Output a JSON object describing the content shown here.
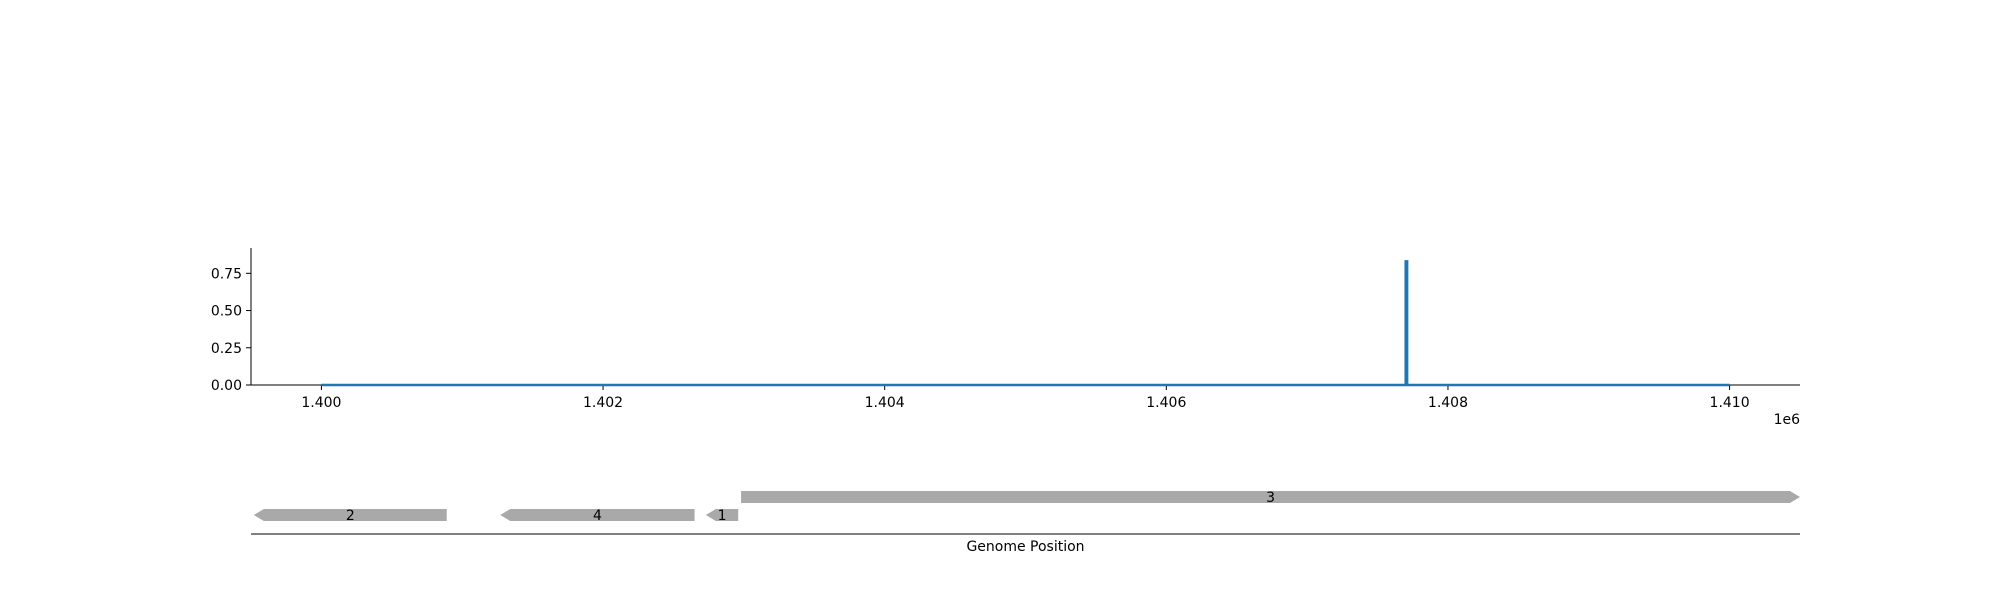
{
  "chart_data": [
    {
      "type": "line",
      "x_offset_label": "1e6",
      "xlim": [
        1399500,
        1410500
      ],
      "ylim": [
        0,
        0.92
      ],
      "xticks": [
        1400000,
        1402000,
        1404000,
        1406000,
        1408000,
        1410000
      ],
      "xtick_labels": [
        "1.400",
        "1.402",
        "1.404",
        "1.406",
        "1.408",
        "1.410"
      ],
      "yticks": [
        0,
        0.25,
        0.5,
        0.75
      ],
      "ytick_labels": [
        "0.00",
        "0.25",
        "0.50",
        "0.75"
      ],
      "grid": false,
      "color": "#1f77b4",
      "x": [
        1400000,
        1407700,
        1407700,
        1407710,
        1407710,
        1410000
      ],
      "y": [
        0,
        0,
        0.83,
        0.83,
        0,
        0
      ]
    },
    {
      "type": "gene-track",
      "xlabel": "Genome Position",
      "xlim": [
        1399500,
        1410500
      ],
      "color": "#a9a9a9",
      "genes": [
        {
          "label": "2",
          "start": 1399520,
          "end": 1400890,
          "strand": "-",
          "row": 0
        },
        {
          "label": "4",
          "start": 1401270,
          "end": 1402650,
          "strand": "-",
          "row": 0
        },
        {
          "label": "1",
          "start": 1402730,
          "end": 1402960,
          "strand": "-",
          "row": 0
        },
        {
          "label": "3",
          "start": 1402980,
          "end": 1410500,
          "strand": "+",
          "row": 1
        }
      ]
    }
  ]
}
